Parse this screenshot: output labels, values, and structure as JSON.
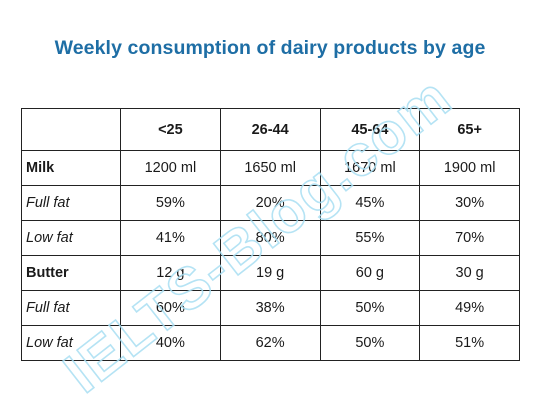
{
  "title": "Weekly consumption of dairy products by age",
  "watermark": "IELTS-Blog.com",
  "chart_data": {
    "type": "table",
    "title": "Weekly consumption of dairy products by age",
    "columns": [
      "",
      "<25",
      "26-44",
      "45-64",
      "65+"
    ],
    "rows": [
      {
        "label": "Milk",
        "kind": "product",
        "values": [
          "1200 ml",
          "1650 ml",
          "1670 ml",
          "1900 ml"
        ]
      },
      {
        "label": "Full fat",
        "kind": "sub",
        "values": [
          "59%",
          "20%",
          "45%",
          "30%"
        ]
      },
      {
        "label": "Low fat",
        "kind": "sub",
        "values": [
          "41%",
          "80%",
          "55%",
          "70%"
        ]
      },
      {
        "label": "Butter",
        "kind": "product",
        "values": [
          "12 g",
          "19 g",
          "60 g",
          "30 g"
        ]
      },
      {
        "label": "Full fat",
        "kind": "sub",
        "values": [
          "60%",
          "38%",
          "50%",
          "49%"
        ]
      },
      {
        "label": "Low fat",
        "kind": "sub",
        "values": [
          "40%",
          "62%",
          "50%",
          "51%"
        ]
      }
    ]
  },
  "colors": {
    "title": "#1e6ea5",
    "watermark": "#a9dff3",
    "border": "#222222"
  }
}
